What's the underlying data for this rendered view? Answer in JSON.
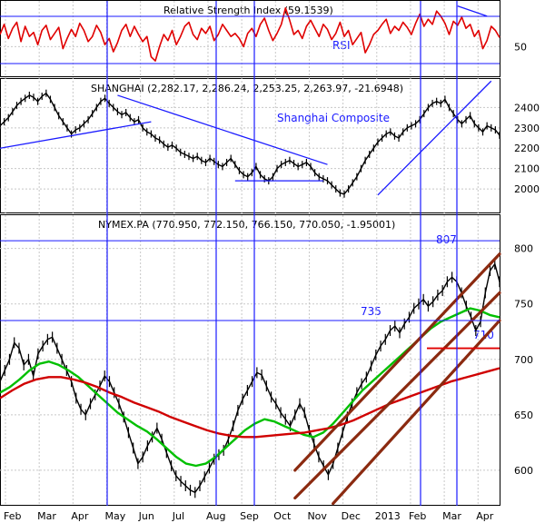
{
  "chart_data": {
    "type": "line",
    "x_axis": {
      "months": [
        "Feb",
        "Mar",
        "Apr",
        "May",
        "Jun",
        "Jul",
        "Aug",
        "Sep",
        "Oct",
        "Nov",
        "Dec",
        "2013",
        "Feb",
        "Mar",
        "Apr"
      ]
    },
    "panes": [
      {
        "id": "rsi",
        "title": "Relative Strength Index (59.1539)",
        "ylim": [
          20,
          95
        ],
        "yticks": [
          50
        ],
        "series": [
          {
            "name": "RSI",
            "color": "#e00000",
            "values": [
              62,
              72,
              58,
              68,
              74,
              55,
              70,
              60,
              64,
              52,
              66,
              71,
              57,
              63,
              69,
              48,
              58,
              67,
              60,
              73,
              66,
              55,
              60,
              71,
              64,
              52,
              58,
              45,
              54,
              66,
              72,
              60,
              70,
              62,
              55,
              60,
              40,
              36,
              50,
              62,
              56,
              66,
              52,
              60,
              70,
              74,
              62,
              57,
              68,
              63,
              70,
              56,
              62,
              72,
              66,
              60,
              63,
              58,
              50,
              63,
              68,
              60,
              72,
              78,
              66,
              56,
              63,
              72,
              88,
              76,
              62,
              66,
              58,
              70,
              76,
              68,
              60,
              72,
              67,
              57,
              63,
              74,
              60,
              66,
              52,
              58,
              64,
              44,
              52,
              62,
              66,
              72,
              77,
              63,
              70,
              66,
              74,
              69,
              62,
              73,
              82,
              70,
              77,
              72,
              85,
              80,
              73,
              62,
              75,
              71,
              79,
              68,
              72,
              60,
              66,
              48,
              56,
              70,
              66,
              59
            ]
          }
        ],
        "annotations": {
          "label": "RSI",
          "trendline": [
            [
              109,
              90
            ],
            [
              116,
              80
            ]
          ]
        }
      },
      {
        "id": "shanghai",
        "title": "SHANGHAI (2,282.17, 2,286.24, 2,253.25, 2,263.97, -21.6948)",
        "ylim": [
          1880,
          2540
        ],
        "yticks": [
          2000,
          2100,
          2200,
          2300,
          2400
        ],
        "series": [
          {
            "name": "SHANGHAI",
            "color": "#000000",
            "values": [
              2310,
              2330,
              2350,
              2380,
              2410,
              2430,
              2445,
              2460,
              2450,
              2430,
              2455,
              2470,
              2440,
              2400,
              2360,
              2330,
              2300,
              2270,
              2290,
              2300,
              2320,
              2340,
              2370,
              2400,
              2430,
              2445,
              2420,
              2400,
              2380,
              2365,
              2375,
              2350,
              2330,
              2340,
              2300,
              2280,
              2270,
              2250,
              2240,
              2220,
              2205,
              2215,
              2200,
              2180,
              2170,
              2160,
              2150,
              2160,
              2140,
              2130,
              2150,
              2135,
              2120,
              2110,
              2130,
              2150,
              2120,
              2090,
              2070,
              2060,
              2080,
              2110,
              2070,
              2050,
              2040,
              2060,
              2100,
              2120,
              2130,
              2140,
              2125,
              2110,
              2120,
              2130,
              2110,
              2080,
              2060,
              2050,
              2040,
              2020,
              2000,
              1980,
              1975,
              2000,
              2030,
              2060,
              2100,
              2140,
              2170,
              2200,
              2230,
              2250,
              2270,
              2280,
              2260,
              2250,
              2280,
              2300,
              2310,
              2320,
              2340,
              2370,
              2400,
              2420,
              2430,
              2420,
              2440,
              2400,
              2370,
              2340,
              2320,
              2340,
              2360,
              2320,
              2300,
              2280,
              2310,
              2300,
              2290,
              2264
            ]
          }
        ],
        "annotations": {
          "label": "Shanghai Composite",
          "trendlines": [
            [
              [
                0,
                2200
              ],
              [
                36,
                2330
              ]
            ],
            [
              [
                28,
                2460
              ],
              [
                78,
                2120
              ]
            ],
            [
              [
                56,
                2040
              ],
              [
                77,
                2040
              ]
            ],
            [
              [
                90,
                1970
              ],
              [
                117,
                2530
              ]
            ]
          ]
        }
      },
      {
        "id": "nymex",
        "title": "NYMEX.PA (770.950, 772.150, 766.150, 770.050, -1.95001)",
        "ylim": [
          568,
          830
        ],
        "yticks": [
          600,
          650,
          700,
          750,
          800
        ],
        "series": [
          {
            "name": "NYMEX.PA",
            "color": "#000000",
            "values": [
              680,
              690,
              700,
              715,
              710,
              695,
              700,
              685,
              705,
              712,
              718,
              720,
              710,
              700,
              690,
              680,
              665,
              655,
              650,
              660,
              668,
              676,
              685,
              680,
              670,
              660,
              648,
              634,
              620,
              606,
              612,
              622,
              630,
              638,
              628,
              616,
              604,
              595,
              590,
              586,
              582,
              580,
              586,
              594,
              602,
              610,
              614,
              618,
              628,
              640,
              654,
              664,
              672,
              680,
              688,
              686,
              676,
              666,
              660,
              652,
              646,
              640,
              650,
              660,
              652,
              636,
              624,
              612,
              604,
              596,
              606,
              620,
              634,
              648,
              660,
              670,
              678,
              684,
              694,
              704,
              712,
              718,
              726,
              730,
              724,
              732,
              738,
              746,
              750,
              754,
              748,
              752,
              758,
              762,
              770,
              774,
              770,
              760,
              748,
              738,
              726,
              734,
              760,
              780,
              786,
              770
            ],
            "note": "daily closes (approximate)"
          },
          {
            "name": "green MA",
            "color": "#00c000",
            "values": [
              670,
              675,
              682,
              690,
              696,
              698,
              695,
              690,
              684,
              676,
              668,
              660,
              652,
              646,
              640,
              635,
              628,
              620,
              612,
              606,
              604,
              606,
              612,
              620,
              628,
              636,
              642,
              646,
              644,
              640,
              636,
              632,
              630,
              634,
              642,
              652,
              662,
              672,
              680,
              688,
              696,
              704,
              712,
              720,
              728,
              734,
              738,
              742,
              746,
              744,
              740,
              738
            ]
          },
          {
            "name": "red MA",
            "color": "#d00000",
            "values": [
              665,
              672,
              678,
              682,
              684,
              684,
              682,
              679,
              675,
              670,
              666,
              661,
              657,
              653,
              648,
              644,
              640,
              636,
              633,
              631,
              630,
              630,
              631,
              632,
              633,
              634,
              636,
              638,
              641,
              645,
              650,
              655,
              660,
              664,
              668,
              672,
              676,
              680,
              683,
              686,
              689,
              692
            ]
          }
        ],
        "levels": [
          {
            "label": "807",
            "value": 807
          },
          {
            "label": "735",
            "value": 735
          },
          {
            "label": "710",
            "value": 710
          }
        ]
      }
    ],
    "vertical_markers": [
      "Apr/May",
      "Aug",
      "Sep",
      "Feb",
      "Mar"
    ]
  }
}
